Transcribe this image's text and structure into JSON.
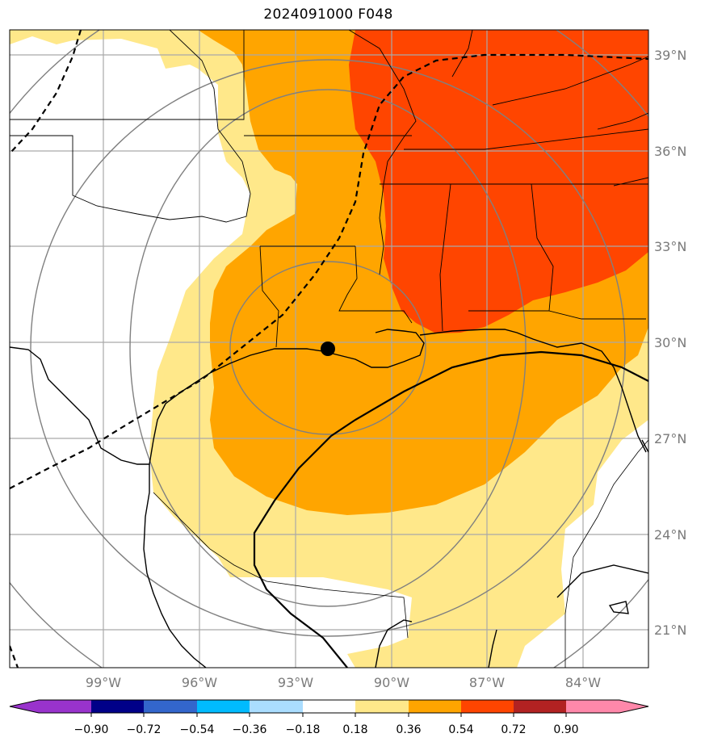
{
  "title": "2024091000 F048",
  "map": {
    "lat_labels": [
      "39°N",
      "36°N",
      "33°N",
      "30°N",
      "27°N",
      "24°N",
      "21°N"
    ],
    "lon_labels": [
      "99°W",
      "96°W",
      "93°W",
      "90°W",
      "87°W",
      "84°W"
    ]
  },
  "colorbar": {
    "ticks": [
      "−0.90",
      "−0.72",
      "−0.54",
      "−0.36",
      "−0.18",
      "0.18",
      "0.36",
      "0.54",
      "0.72",
      "0.90"
    ],
    "colors": [
      "#9933cc",
      "#000088",
      "#3366cc",
      "#00bbff",
      "#aaddff",
      "#ffffff",
      "#ffe88a",
      "#ffa500",
      "#ff4500",
      "#b22222",
      "#ff88aa"
    ]
  },
  "fill_colors": {
    "light_yellow": "#ffe88a",
    "orange": "#ffa500",
    "red_orange": "#ff4500"
  }
}
